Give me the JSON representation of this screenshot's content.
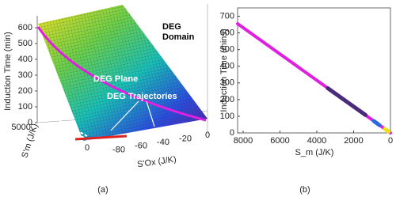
{
  "chart_data": [
    {
      "type": "surface3d",
      "zlabel": "Induction Time (min)",
      "ylabel": "S'm (J/K)",
      "xlabel": "S'Ox (J/K)",
      "zlim": [
        0,
        650
      ],
      "zticks": [
        0,
        100,
        200,
        300,
        400,
        500,
        600
      ],
      "ylim": [
        0,
        6000
      ],
      "yticks": [
        0,
        5000
      ],
      "xlim": [
        -100,
        0
      ],
      "xticks": [
        -80,
        -60,
        -40,
        -20,
        0
      ],
      "annotations": [
        "DEG Domain",
        "DEG Plane",
        "DEG Trajectories"
      ],
      "caption": "(a)"
    },
    {
      "type": "line",
      "xlabel": "S_m (J/K)",
      "ylabel": "Induction Time (mins)",
      "xlim": [
        8300,
        0
      ],
      "xticks": [
        8000,
        6000,
        4000,
        2000,
        0
      ],
      "ylim": [
        0,
        750
      ],
      "yticks": [
        0,
        100,
        200,
        300,
        400,
        500,
        600,
        700
      ],
      "series": [
        {
          "color": "#e020e0",
          "x": [
            8300,
            0
          ],
          "values": [
            655,
            0
          ]
        },
        {
          "color": "#4a2a7a",
          "x": [
            3400,
            1350
          ],
          "values": [
            268,
            107
          ]
        },
        {
          "color": "#2a6adf",
          "x": [
            900,
            600
          ],
          "values": [
            71,
            47
          ]
        },
        {
          "color": "#f0e020",
          "x": [
            300,
            100
          ],
          "values": [
            24,
            8
          ]
        }
      ],
      "caption": "(b)"
    }
  ]
}
